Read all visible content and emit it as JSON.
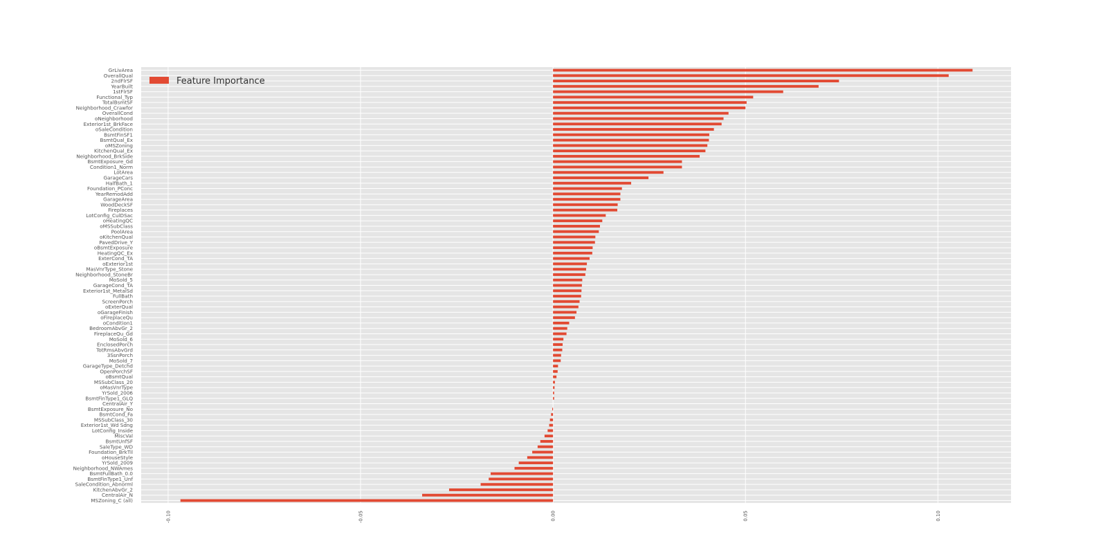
{
  "chart_data": {
    "type": "bar",
    "orientation": "horizontal",
    "series": [
      {
        "name": "Feature Importance",
        "color": "#E24A33"
      }
    ],
    "legend": {
      "label": "Feature Importance",
      "placement": "top-left"
    },
    "xlim": [
      -0.107,
      0.119
    ],
    "xticks": [
      {
        "value": -0.1,
        "label": "-0.10"
      },
      {
        "value": -0.05,
        "label": "-0.05"
      },
      {
        "value": 0.0,
        "label": "0.00"
      },
      {
        "value": 0.05,
        "label": "0.05"
      },
      {
        "value": 0.1,
        "label": "0.10"
      }
    ],
    "grid": true,
    "background_color": "#E5E5E5",
    "grid_color": "#FFFFFF",
    "bar_color": "#E24A33",
    "categories": [
      "GrLivArea",
      "OverallQual",
      "2ndFlrSF",
      "YearBuilt",
      "1stFlrSF",
      "Functional_Typ",
      "TotalBsmtSF",
      "Neighborhood_Crawfor",
      "OverallCond",
      "oNeighborhood",
      "Exterior1st_BrkFace",
      "oSaleCondition",
      "BsmtFinSF1",
      "BsmtQual_Ex",
      "oMSZoning",
      "KitchenQual_Ex",
      "Neighborhood_BrkSide",
      "BsmtExposure_Gd",
      "Condition1_Norm",
      "LotArea",
      "GarageCars",
      "HalfBath_1",
      "Foundation_PConc",
      "YearRemodAdd",
      "GarageArea",
      "WoodDeckSF",
      "Fireplaces",
      "LotConfig_CulDSac",
      "oHeatingQC",
      "oMSSubClass",
      "PoolArea",
      "oKitchenQual",
      "PavedDrive_Y",
      "oBsmtExposure",
      "HeatingQC_Ex",
      "ExterCond_TA",
      "oExterior1st",
      "MasVnrType_Stone",
      "Neighborhood_StoneBr",
      "MoSold_5",
      "GarageCond_TA",
      "Exterior1st_MetalSd",
      "FullBath",
      "ScreenPorch",
      "oExterQual",
      "oGarageFinish",
      "oFireplaceQu",
      "oCondition1",
      "BedroomAbvGr_2",
      "FireplaceQu_Gd",
      "MoSold_6",
      "EnclosedPorch",
      "TotRmsAbvGrd",
      "3SsnPorch",
      "MoSold_7",
      "GarageType_Detchd",
      "OpenPorchSF",
      "oBsmtQual",
      "MSSubClass_20",
      "oMasVnrType",
      "YrSold_2006",
      "BsmtFinType1_GLQ",
      "CentralAir_Y",
      "BsmtExposure_No",
      "BsmtCond_Fa",
      "MSSubClass_30",
      "Exterior1st_Wd Sdng",
      "LotConfig_Inside",
      "MiscVal",
      "BsmtUnfSF",
      "SaleType_WD",
      "Foundation_BrkTil",
      "oHouseStyle",
      "YrSold_2009",
      "Neighborhood_NWAmes",
      "BsmtFullBath_0.0",
      "BsmtFinType1_Unf",
      "SaleCondition_Abnorml",
      "KitchenAbvGr_2",
      "CentralAir_N",
      "MSZoning_C (all)"
    ],
    "values": [
      0.109,
      0.1028,
      0.0743,
      0.069,
      0.0598,
      0.052,
      0.0503,
      0.05,
      0.0456,
      0.0443,
      0.0438,
      0.0418,
      0.0406,
      0.0405,
      0.0401,
      0.0396,
      0.0381,
      0.0335,
      0.0335,
      0.0287,
      0.0248,
      0.0203,
      0.0179,
      0.0175,
      0.0175,
      0.0168,
      0.0167,
      0.0137,
      0.0128,
      0.0122,
      0.0119,
      0.011,
      0.0109,
      0.0103,
      0.0102,
      0.0095,
      0.0088,
      0.0086,
      0.0084,
      0.0076,
      0.0075,
      0.0074,
      0.0073,
      0.0069,
      0.0066,
      0.0061,
      0.0057,
      0.0042,
      0.0037,
      0.0035,
      0.0027,
      0.0025,
      0.0024,
      0.0021,
      0.002,
      0.0013,
      0.0012,
      0.0009,
      0.0005,
      0.0004,
      0.0003,
      0.0003,
      0.0,
      -0.0002,
      -0.0005,
      -0.0008,
      -0.001,
      -0.0014,
      -0.0022,
      -0.0033,
      -0.004,
      -0.0054,
      -0.0067,
      -0.0089,
      -0.01,
      -0.0162,
      -0.0167,
      -0.0188,
      -0.027,
      -0.034,
      -0.0968
    ]
  }
}
